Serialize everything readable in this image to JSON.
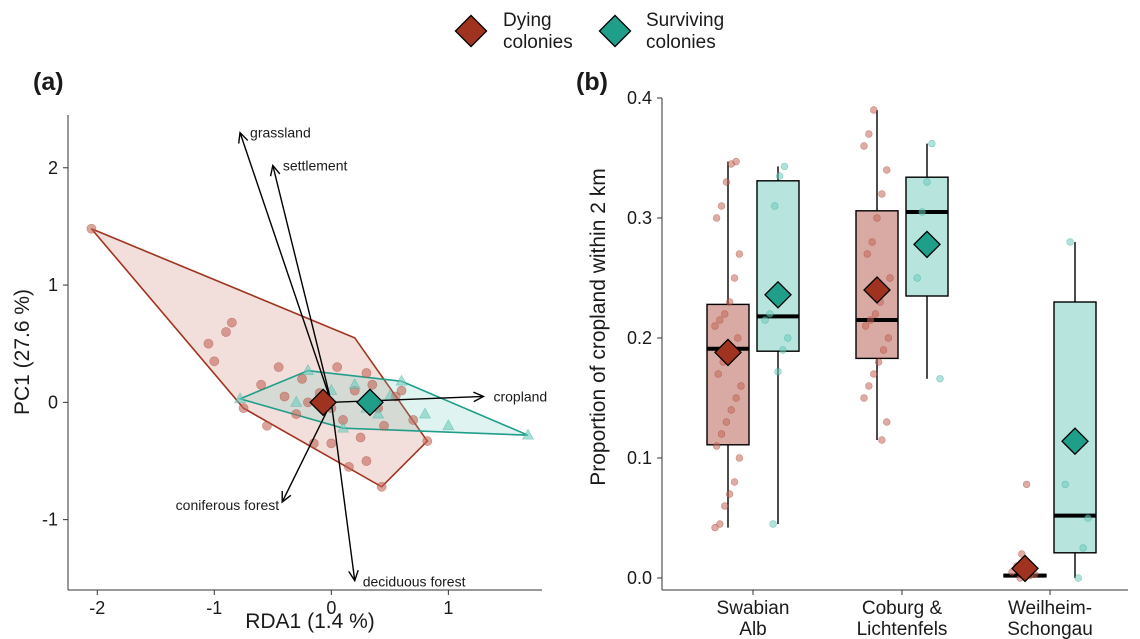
{
  "colors": {
    "dying": "#a0331f",
    "dying_fill": "#c2685a",
    "dying_box": "#d9aaa3",
    "surviving": "#1f9e8a",
    "surviving_fill": "#6fcbbd",
    "surviving_box": "#b7e5de"
  },
  "legend": {
    "dying": "Dying colonies",
    "dying_l1": "Dying",
    "dying_l2": "colonies",
    "surviving": "Surviving colonies",
    "surviving_l1": "Surviving",
    "surviving_l2": "colonies",
    "placement": "top-center"
  },
  "chart_data": [
    {
      "panel": "(a)",
      "type": "scatter",
      "xlabel": "RDA1 (1.4 %)",
      "ylabel": "PC1 (27.6 %)",
      "xlim": [
        -2.25,
        1.8
      ],
      "ylim": [
        -1.6,
        2.45
      ],
      "xticks": [
        -2,
        -1,
        0,
        1
      ],
      "yticks": [
        -1,
        0,
        1,
        2
      ],
      "xtick_labels": [
        "-2",
        "-1",
        "0",
        "1"
      ],
      "ytick_labels": [
        "-1",
        "0",
        "1",
        "2"
      ],
      "grid": false,
      "series": [
        {
          "name": "Dying colonies",
          "marker": "circle",
          "hull": [
            [
              -2.05,
              1.48
            ],
            [
              0.2,
              0.55
            ],
            [
              0.82,
              -0.33
            ],
            [
              0.43,
              -0.72
            ],
            [
              -0.75,
              -0.05
            ]
          ],
          "centroid": [
            -0.07,
            0.0
          ],
          "points": [
            [
              -2.05,
              1.48
            ],
            [
              -1.05,
              0.5
            ],
            [
              -1.0,
              0.35
            ],
            [
              -0.85,
              0.68
            ],
            [
              -0.75,
              -0.05
            ],
            [
              -0.9,
              0.6
            ],
            [
              -0.6,
              0.15
            ],
            [
              -0.4,
              0.05
            ],
            [
              -0.3,
              -0.1
            ],
            [
              -0.2,
              0.0
            ],
            [
              -0.1,
              0.08
            ],
            [
              0.0,
              -0.05
            ],
            [
              0.1,
              -0.15
            ],
            [
              0.2,
              0.1
            ],
            [
              0.25,
              -0.3
            ],
            [
              0.3,
              -0.5
            ],
            [
              0.35,
              0.15
            ],
            [
              0.45,
              -0.2
            ],
            [
              0.55,
              0.05
            ],
            [
              0.6,
              0.1
            ],
            [
              0.7,
              -0.15
            ],
            [
              0.82,
              -0.33
            ],
            [
              0.43,
              -0.72
            ],
            [
              0.15,
              -0.55
            ],
            [
              -0.15,
              -0.35
            ],
            [
              -0.45,
              0.3
            ],
            [
              0.05,
              0.3
            ],
            [
              0.4,
              -0.05
            ],
            [
              -0.25,
              0.2
            ],
            [
              0.0,
              -0.35
            ],
            [
              0.3,
              0.25
            ],
            [
              -0.55,
              -0.2
            ]
          ]
        },
        {
          "name": "Surviving colonies",
          "marker": "triangle",
          "hull": [
            [
              -0.78,
              0.03
            ],
            [
              -0.2,
              0.27
            ],
            [
              0.6,
              0.18
            ],
            [
              1.68,
              -0.28
            ],
            [
              0.1,
              -0.22
            ]
          ],
          "centroid": [
            0.33,
            0.0
          ],
          "points": [
            [
              -0.78,
              0.03
            ],
            [
              -0.2,
              0.27
            ],
            [
              0.6,
              0.18
            ],
            [
              1.68,
              -0.28
            ],
            [
              0.1,
              -0.22
            ],
            [
              0.0,
              0.1
            ],
            [
              0.3,
              -0.05
            ],
            [
              0.5,
              0.05
            ],
            [
              0.8,
              -0.1
            ],
            [
              0.4,
              -0.1
            ],
            [
              1.0,
              -0.2
            ],
            [
              -0.3,
              0.0
            ],
            [
              0.2,
              0.15
            ]
          ]
        }
      ],
      "arrows": [
        {
          "label": "grassland",
          "x": -0.78,
          "y": 2.3
        },
        {
          "label": "settlement",
          "x": -0.5,
          "y": 2.02
        },
        {
          "label": "cropland",
          "x": 1.3,
          "y": 0.05
        },
        {
          "label": "coniferous forest",
          "x": -0.42,
          "y": -0.85
        },
        {
          "label": "deciduous forest",
          "x": 0.2,
          "y": -1.52
        }
      ]
    },
    {
      "panel": "(b)",
      "type": "box",
      "ylabel": "Proportion of cropland within 2 km",
      "ylim": [
        -0.01,
        0.4
      ],
      "yticks": [
        0.0,
        0.1,
        0.2,
        0.3,
        0.4
      ],
      "ytick_labels": [
        "0.0",
        "0.1",
        "0.2",
        "0.3",
        "0.4"
      ],
      "grid": false,
      "categories": [
        "Swabian Alb",
        "Coburg & Lichtenfels",
        "Weilheim-Schongau"
      ],
      "category_l1": [
        "Swabian",
        "Coburg &",
        "Weilheim-"
      ],
      "category_l2": [
        "Alb",
        "Lichtenfels",
        "Schongau"
      ],
      "series": [
        {
          "name": "Dying colonies",
          "boxes": [
            {
              "min": 0.042,
              "q1": 0.111,
              "median": 0.191,
              "q3": 0.228,
              "max": 0.347,
              "mean": 0.188
            },
            {
              "min": 0.115,
              "q1": 0.183,
              "median": 0.215,
              "q3": 0.306,
              "max": 0.39,
              "mean": 0.24
            },
            {
              "min": 0.0,
              "q1": 0.001,
              "median": 0.002,
              "q3": 0.003,
              "max": 0.005,
              "mean": 0.008
            }
          ],
          "points": [
            [
              0.042,
              0.045,
              0.06,
              0.07,
              0.08,
              0.1,
              0.11,
              0.12,
              0.13,
              0.14,
              0.15,
              0.16,
              0.17,
              0.18,
              0.185,
              0.19,
              0.2,
              0.21,
              0.215,
              0.22,
              0.23,
              0.25,
              0.27,
              0.3,
              0.31,
              0.33,
              0.345,
              0.347
            ],
            [
              0.115,
              0.13,
              0.15,
              0.16,
              0.17,
              0.18,
              0.19,
              0.2,
              0.21,
              0.215,
              0.22,
              0.23,
              0.24,
              0.25,
              0.27,
              0.28,
              0.3,
              0.32,
              0.34,
              0.36,
              0.37,
              0.39
            ],
            [
              0.0,
              0.001,
              0.002,
              0.003,
              0.005,
              0.01,
              0.02,
              0.078
            ]
          ]
        },
        {
          "name": "Surviving colonies",
          "boxes": [
            {
              "min": 0.045,
              "q1": 0.189,
              "median": 0.218,
              "q3": 0.331,
              "max": 0.343,
              "mean": 0.236
            },
            {
              "min": 0.166,
              "q1": 0.235,
              "median": 0.305,
              "q3": 0.334,
              "max": 0.362,
              "mean": 0.278
            },
            {
              "min": 0.0,
              "q1": 0.021,
              "median": 0.052,
              "q3": 0.23,
              "max": 0.28,
              "mean": 0.114
            }
          ],
          "points": [
            [
              0.045,
              0.172,
              0.19,
              0.2,
              0.215,
              0.22,
              0.31,
              0.335,
              0.343
            ],
            [
              0.166,
              0.25,
              0.305,
              0.33,
              0.362
            ],
            [
              0.0,
              0.025,
              0.05,
              0.078,
              0.28
            ]
          ]
        }
      ]
    }
  ]
}
